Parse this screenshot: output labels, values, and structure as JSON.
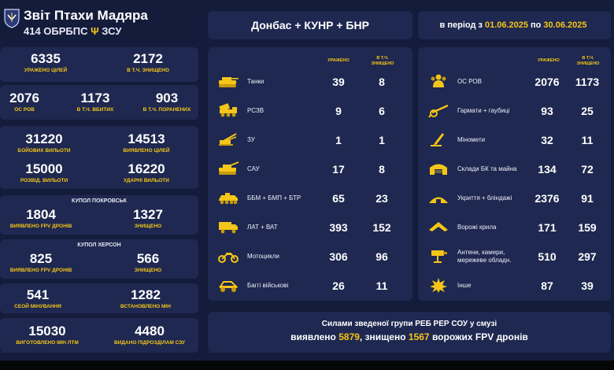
{
  "header": {
    "title": "Звіт Птахи Мадяра",
    "unit": "414 ОБРБПС",
    "unit_suffix": "ЗСУ"
  },
  "left": {
    "row1": [
      {
        "value": "6335",
        "label": "уражено цілей"
      },
      {
        "value": "2172",
        "label": "в т.ч. знищено"
      }
    ],
    "row2": [
      {
        "value": "2076",
        "label": "ос ров"
      },
      {
        "value": "1173",
        "label": "в т.ч. вбитих"
      },
      {
        "value": "903",
        "label": "в т.ч. поранених"
      }
    ],
    "row3": [
      {
        "value": "31220",
        "label": "бойових вильоти"
      },
      {
        "value": "14513",
        "label": "виявлено цілей"
      }
    ],
    "row4": [
      {
        "value": "15000",
        "label": "розвід. вильоти"
      },
      {
        "value": "16220",
        "label": "ударні вильоти"
      }
    ],
    "pokrovsk": {
      "title": "купол покровськ",
      "stats": [
        {
          "value": "1804",
          "label": "виявлено fpv дронів"
        },
        {
          "value": "1327",
          "label": "знищено"
        }
      ]
    },
    "kherson": {
      "title": "купол херсон",
      "stats": [
        {
          "value": "825",
          "label": "виявлено fpv дронів"
        },
        {
          "value": "566",
          "label": "знищено"
        }
      ]
    },
    "mining": [
      {
        "value": "541",
        "label": "сеой мінування"
      },
      {
        "value": "1282",
        "label": "встановлено мін"
      }
    ],
    "manufacture": [
      {
        "value": "15030",
        "label": "виготовлено мін ЛТМ"
      },
      {
        "value": "4480",
        "label": "видано підрозділам сзу"
      }
    ]
  },
  "middle": {
    "region": "Донбас + КУНР + БНР",
    "col_hit": "уражено",
    "col_destroyed": "в т.ч. знищено",
    "rows": [
      {
        "icon": "tank-icon",
        "name": "Танки",
        "hit": "39",
        "destroyed": "8"
      },
      {
        "icon": "mlrs-icon",
        "name": "РСЗВ",
        "hit": "9",
        "destroyed": "6"
      },
      {
        "icon": "air-defense-icon",
        "name": "ЗУ",
        "hit": "1",
        "destroyed": "1"
      },
      {
        "icon": "self-propelled-gun-icon",
        "name": "САУ",
        "hit": "17",
        "destroyed": "8"
      },
      {
        "icon": "apc-icon",
        "name": "ББМ + БМП + БТР",
        "hit": "65",
        "destroyed": "23"
      },
      {
        "icon": "truck-icon",
        "name": "ЛАТ + ВАТ",
        "hit": "393",
        "destroyed": "152"
      },
      {
        "icon": "motorcycle-icon",
        "name": "Мотоцикли",
        "hit": "306",
        "destroyed": "96"
      },
      {
        "icon": "buggy-icon",
        "name": "Баггі військові",
        "hit": "26",
        "destroyed": "11"
      }
    ]
  },
  "right": {
    "period_prefix": "в період з",
    "period_from": "01.06.2025",
    "period_mid": "по",
    "period_to": "30.06.2025",
    "col_hit": "уражено",
    "col_destroyed": "в т.ч. знищено",
    "rows": [
      {
        "icon": "personnel-icon",
        "name": "ОС РОВ",
        "hit": "2076",
        "destroyed": "1173"
      },
      {
        "icon": "howitzer-icon",
        "name": "Гармати + гаубиці",
        "hit": "93",
        "destroyed": "25"
      },
      {
        "icon": "mortar-icon",
        "name": "Міномети",
        "hit": "32",
        "destroyed": "11"
      },
      {
        "icon": "depot-icon",
        "name": "Склади БК та майна",
        "hit": "134",
        "destroyed": "72"
      },
      {
        "icon": "bunker-icon",
        "name": "Укриття + бліндажі",
        "hit": "2376",
        "destroyed": "91"
      },
      {
        "icon": "wings-icon",
        "name": "Ворожі крила",
        "hit": "171",
        "destroyed": "159"
      },
      {
        "icon": "antenna-icon",
        "name": "Антени, камери, мережеве обладн.",
        "hit": "510",
        "destroyed": "297"
      },
      {
        "icon": "other-icon",
        "name": "Інше",
        "hit": "87",
        "destroyed": "39"
      }
    ]
  },
  "footer": {
    "line1": "Силами зведеної групи РЕБ РЕР СОУ у смузі",
    "l2_a": "виявлено",
    "detected": "5879",
    "l2_b": ", знищено",
    "destroyed": "1567",
    "l2_c": "ворожих FPV дронів"
  },
  "colors": {
    "background": "#141c3b",
    "panel": "#1e2850",
    "accent": "#f5c518"
  }
}
